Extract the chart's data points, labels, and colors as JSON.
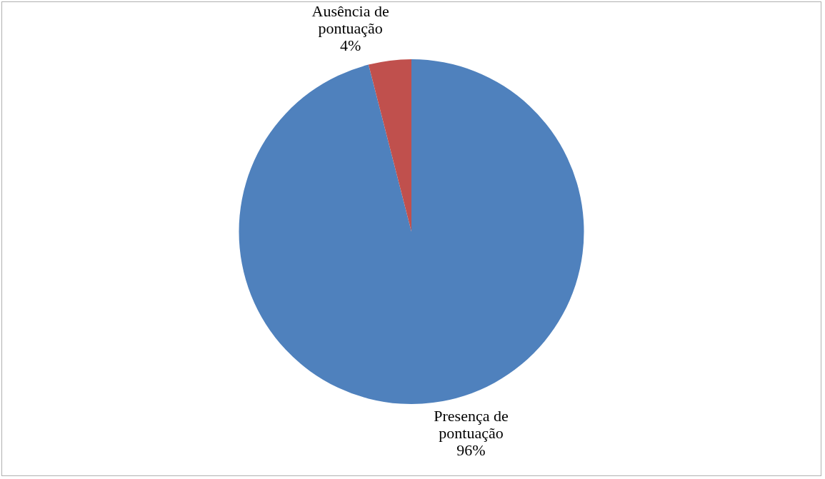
{
  "chart_data": {
    "type": "pie",
    "categories": [
      "Presença de pontuação",
      "Ausência de pontuação"
    ],
    "values": [
      96,
      4
    ],
    "colors": [
      "#4f81bd",
      "#c0504d"
    ],
    "value_labels": [
      "96%",
      "4%"
    ]
  }
}
